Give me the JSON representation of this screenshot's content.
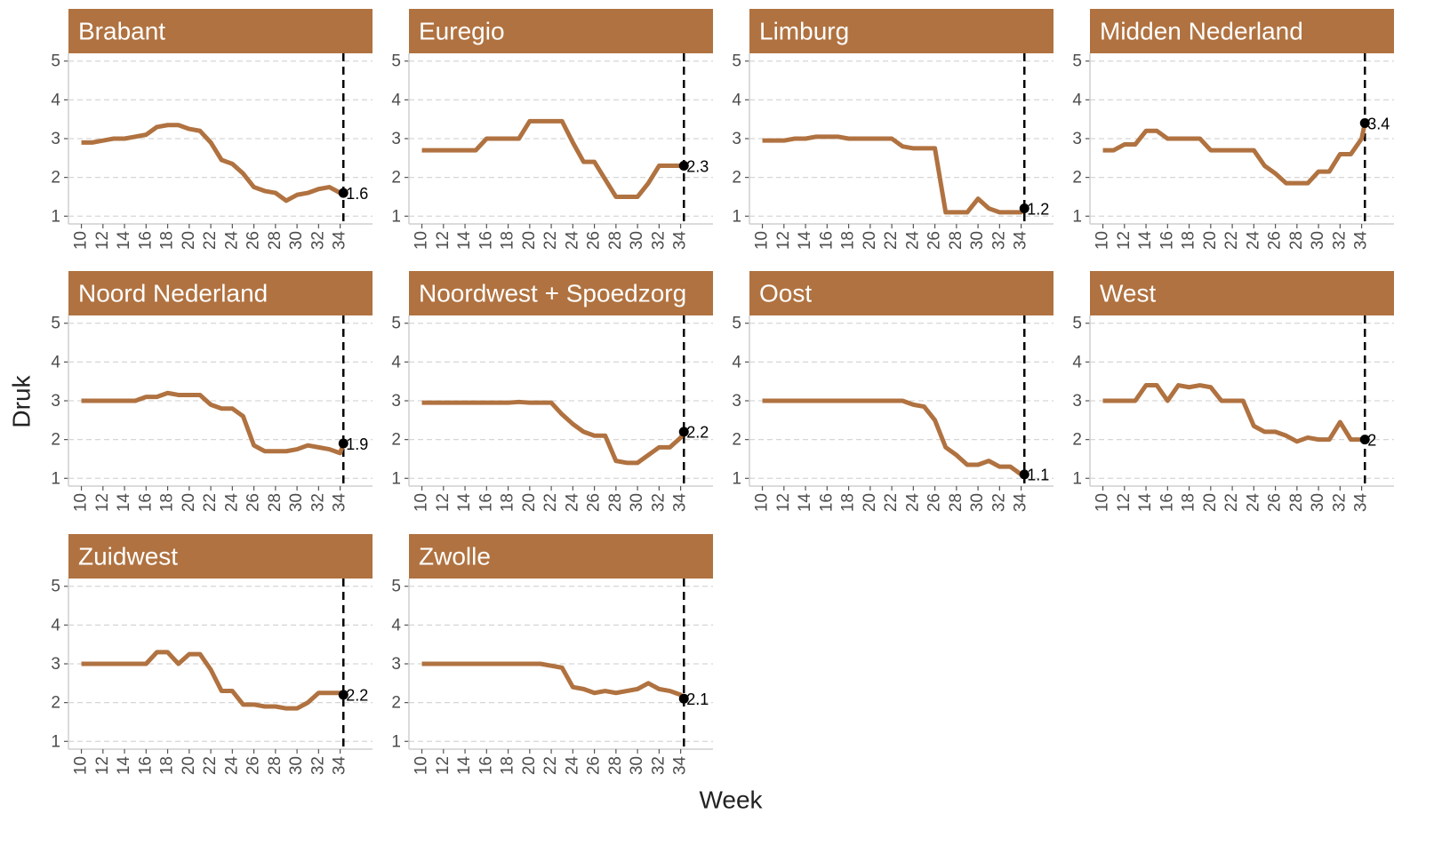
{
  "xlabel": "Week",
  "ylabel": "Druk",
  "chart_data": [
    {
      "type": "line",
      "title": "Brabant",
      "color": "#b07240",
      "xlim": [
        8.8,
        37
      ],
      "ylim": [
        0.8,
        5.2
      ],
      "xticks": [
        10,
        12,
        14,
        16,
        18,
        20,
        22,
        24,
        26,
        28,
        30,
        32,
        34
      ],
      "yticks": [
        1,
        2,
        3,
        4,
        5
      ],
      "grid": true,
      "vline": 34.3,
      "x": [
        10,
        11,
        12,
        13,
        14,
        15,
        16,
        17,
        18,
        19,
        20,
        21,
        22,
        23,
        24,
        25,
        26,
        27,
        28,
        29,
        30,
        31,
        32,
        33,
        34,
        34.3
      ],
      "values": [
        2.9,
        2.9,
        2.95,
        3.0,
        3.0,
        3.05,
        3.1,
        3.3,
        3.35,
        3.35,
        3.25,
        3.2,
        2.9,
        2.45,
        2.35,
        2.1,
        1.75,
        1.65,
        1.6,
        1.4,
        1.55,
        1.6,
        1.7,
        1.75,
        1.6,
        1.6
      ]
    },
    {
      "type": "line",
      "title": "Euregio",
      "color": "#b07240",
      "xlim": [
        8.8,
        37
      ],
      "ylim": [
        0.8,
        5.2
      ],
      "xticks": [
        10,
        12,
        14,
        16,
        18,
        20,
        22,
        24,
        26,
        28,
        30,
        32,
        34
      ],
      "yticks": [
        1,
        2,
        3,
        4,
        5
      ],
      "grid": true,
      "vline": 34.3,
      "x": [
        10,
        11,
        12,
        13,
        14,
        15,
        16,
        17,
        18,
        19,
        20,
        21,
        22,
        23,
        24,
        25,
        26,
        27,
        28,
        29,
        30,
        31,
        32,
        33,
        34,
        34.3
      ],
      "values": [
        2.7,
        2.7,
        2.7,
        2.7,
        2.7,
        2.7,
        3.0,
        3.0,
        3.0,
        3.0,
        3.45,
        3.45,
        3.45,
        3.45,
        2.9,
        2.4,
        2.4,
        1.95,
        1.5,
        1.5,
        1.5,
        1.85,
        2.3,
        2.3,
        2.3,
        2.3
      ]
    },
    {
      "type": "line",
      "title": "Limburg",
      "color": "#b07240",
      "xlim": [
        8.8,
        37
      ],
      "ylim": [
        0.8,
        5.2
      ],
      "xticks": [
        10,
        12,
        14,
        16,
        18,
        20,
        22,
        24,
        26,
        28,
        30,
        32,
        34
      ],
      "yticks": [
        1,
        2,
        3,
        4,
        5
      ],
      "grid": true,
      "vline": 34.3,
      "x": [
        10,
        11,
        12,
        13,
        14,
        15,
        16,
        17,
        18,
        19,
        20,
        21,
        22,
        23,
        24,
        25,
        26,
        27,
        28,
        29,
        30,
        31,
        32,
        33,
        34,
        34.3
      ],
      "values": [
        2.95,
        2.95,
        2.95,
        3.0,
        3.0,
        3.05,
        3.05,
        3.05,
        3.0,
        3.0,
        3.0,
        3.0,
        3.0,
        2.8,
        2.75,
        2.75,
        2.75,
        1.1,
        1.1,
        1.1,
        1.45,
        1.2,
        1.1,
        1.1,
        1.1,
        1.2
      ]
    },
    {
      "type": "line",
      "title": "Midden Nederland",
      "color": "#b07240",
      "xlim": [
        8.8,
        37
      ],
      "ylim": [
        0.8,
        5.2
      ],
      "xticks": [
        10,
        12,
        14,
        16,
        18,
        20,
        22,
        24,
        26,
        28,
        30,
        32,
        34
      ],
      "yticks": [
        1,
        2,
        3,
        4,
        5
      ],
      "grid": true,
      "vline": 34.3,
      "x": [
        10,
        11,
        12,
        13,
        14,
        15,
        16,
        17,
        18,
        19,
        20,
        21,
        22,
        23,
        24,
        25,
        26,
        27,
        28,
        29,
        30,
        31,
        32,
        33,
        34,
        34.3
      ],
      "values": [
        2.7,
        2.7,
        2.85,
        2.85,
        3.2,
        3.2,
        3.0,
        3.0,
        3.0,
        3.0,
        2.7,
        2.7,
        2.7,
        2.7,
        2.7,
        2.3,
        2.1,
        1.85,
        1.85,
        1.85,
        2.15,
        2.15,
        2.6,
        2.6,
        3.0,
        3.4
      ]
    },
    {
      "type": "line",
      "title": "Noord Nederland",
      "color": "#b07240",
      "xlim": [
        8.8,
        37
      ],
      "ylim": [
        0.8,
        5.2
      ],
      "xticks": [
        10,
        12,
        14,
        16,
        18,
        20,
        22,
        24,
        26,
        28,
        30,
        32,
        34
      ],
      "yticks": [
        1,
        2,
        3,
        4,
        5
      ],
      "grid": true,
      "vline": 34.3,
      "x": [
        10,
        11,
        12,
        13,
        14,
        15,
        16,
        17,
        18,
        19,
        20,
        21,
        22,
        23,
        24,
        25,
        26,
        27,
        28,
        29,
        30,
        31,
        32,
        33,
        34,
        34.3
      ],
      "values": [
        3.0,
        3.0,
        3.0,
        3.0,
        3.0,
        3.0,
        3.1,
        3.1,
        3.2,
        3.15,
        3.15,
        3.15,
        2.9,
        2.8,
        2.8,
        2.6,
        1.85,
        1.7,
        1.7,
        1.7,
        1.75,
        1.85,
        1.8,
        1.75,
        1.65,
        1.9
      ]
    },
    {
      "type": "line",
      "title": "Noordwest + Spoedzorg",
      "color": "#b07240",
      "xlim": [
        8.8,
        37
      ],
      "ylim": [
        0.8,
        5.2
      ],
      "xticks": [
        10,
        12,
        14,
        16,
        18,
        20,
        22,
        24,
        26,
        28,
        30,
        32,
        34
      ],
      "yticks": [
        1,
        2,
        3,
        4,
        5
      ],
      "grid": true,
      "vline": 34.3,
      "x": [
        10,
        11,
        12,
        13,
        14,
        15,
        16,
        17,
        18,
        19,
        20,
        21,
        22,
        23,
        24,
        25,
        26,
        27,
        28,
        29,
        30,
        31,
        32,
        33,
        34,
        34.3
      ],
      "values": [
        2.95,
        2.95,
        2.95,
        2.95,
        2.95,
        2.95,
        2.95,
        2.95,
        2.95,
        2.97,
        2.95,
        2.95,
        2.95,
        2.65,
        2.4,
        2.2,
        2.1,
        2.1,
        1.45,
        1.4,
        1.4,
        1.6,
        1.8,
        1.8,
        2.05,
        2.2
      ]
    },
    {
      "type": "line",
      "title": "Oost",
      "color": "#b07240",
      "xlim": [
        8.8,
        37
      ],
      "ylim": [
        0.8,
        5.2
      ],
      "xticks": [
        10,
        12,
        14,
        16,
        18,
        20,
        22,
        24,
        26,
        28,
        30,
        32,
        34
      ],
      "yticks": [
        1,
        2,
        3,
        4,
        5
      ],
      "grid": true,
      "vline": 34.3,
      "x": [
        10,
        11,
        12,
        13,
        14,
        15,
        16,
        17,
        18,
        19,
        20,
        21,
        22,
        23,
        24,
        25,
        26,
        27,
        28,
        29,
        30,
        31,
        32,
        33,
        34,
        34.3
      ],
      "values": [
        3.0,
        3.0,
        3.0,
        3.0,
        3.0,
        3.0,
        3.0,
        3.0,
        3.0,
        3.0,
        3.0,
        3.0,
        3.0,
        3.0,
        2.9,
        2.85,
        2.5,
        1.8,
        1.6,
        1.35,
        1.35,
        1.45,
        1.3,
        1.3,
        1.1,
        1.1
      ]
    },
    {
      "type": "line",
      "title": "West",
      "color": "#b07240",
      "xlim": [
        8.8,
        37
      ],
      "ylim": [
        0.8,
        5.2
      ],
      "xticks": [
        10,
        12,
        14,
        16,
        18,
        20,
        22,
        24,
        26,
        28,
        30,
        32,
        34
      ],
      "yticks": [
        1,
        2,
        3,
        4,
        5
      ],
      "grid": true,
      "vline": 34.3,
      "x": [
        10,
        11,
        12,
        13,
        14,
        15,
        16,
        17,
        18,
        19,
        20,
        21,
        22,
        23,
        24,
        25,
        26,
        27,
        28,
        29,
        30,
        31,
        32,
        33,
        34,
        34.3
      ],
      "values": [
        3.0,
        3.0,
        3.0,
        3.0,
        3.4,
        3.4,
        3.0,
        3.4,
        3.35,
        3.4,
        3.35,
        3.0,
        3.0,
        3.0,
        2.35,
        2.2,
        2.2,
        2.1,
        1.95,
        2.05,
        2.0,
        2.0,
        2.45,
        2.0,
        2.0,
        2
      ]
    },
    {
      "type": "line",
      "title": "Zuidwest",
      "color": "#b07240",
      "xlim": [
        8.8,
        37
      ],
      "ylim": [
        0.8,
        5.2
      ],
      "xticks": [
        10,
        12,
        14,
        16,
        18,
        20,
        22,
        24,
        26,
        28,
        30,
        32,
        34
      ],
      "yticks": [
        1,
        2,
        3,
        4,
        5
      ],
      "grid": true,
      "vline": 34.3,
      "x": [
        10,
        11,
        12,
        13,
        14,
        15,
        16,
        17,
        18,
        19,
        20,
        21,
        22,
        23,
        24,
        25,
        26,
        27,
        28,
        29,
        30,
        31,
        32,
        33,
        34,
        34.3
      ],
      "values": [
        3.0,
        3.0,
        3.0,
        3.0,
        3.0,
        3.0,
        3.0,
        3.3,
        3.3,
        3.0,
        3.25,
        3.25,
        2.85,
        2.3,
        2.3,
        1.95,
        1.95,
        1.9,
        1.9,
        1.85,
        1.85,
        2.0,
        2.25,
        2.25,
        2.25,
        2.2
      ]
    },
    {
      "type": "line",
      "title": "Zwolle",
      "color": "#b07240",
      "xlim": [
        8.8,
        37
      ],
      "ylim": [
        0.8,
        5.2
      ],
      "xticks": [
        10,
        12,
        14,
        16,
        18,
        20,
        22,
        24,
        26,
        28,
        30,
        32,
        34
      ],
      "yticks": [
        1,
        2,
        3,
        4,
        5
      ],
      "grid": true,
      "vline": 34.3,
      "x": [
        10,
        11,
        12,
        13,
        14,
        15,
        16,
        17,
        18,
        19,
        20,
        21,
        22,
        23,
        24,
        25,
        26,
        27,
        28,
        29,
        30,
        31,
        32,
        33,
        34,
        34.3
      ],
      "values": [
        3.0,
        3.0,
        3.0,
        3.0,
        3.0,
        3.0,
        3.0,
        3.0,
        3.0,
        3.0,
        3.0,
        3.0,
        2.95,
        2.9,
        2.4,
        2.35,
        2.25,
        2.3,
        2.25,
        2.3,
        2.35,
        2.5,
        2.35,
        2.3,
        2.2,
        2.1
      ]
    }
  ]
}
